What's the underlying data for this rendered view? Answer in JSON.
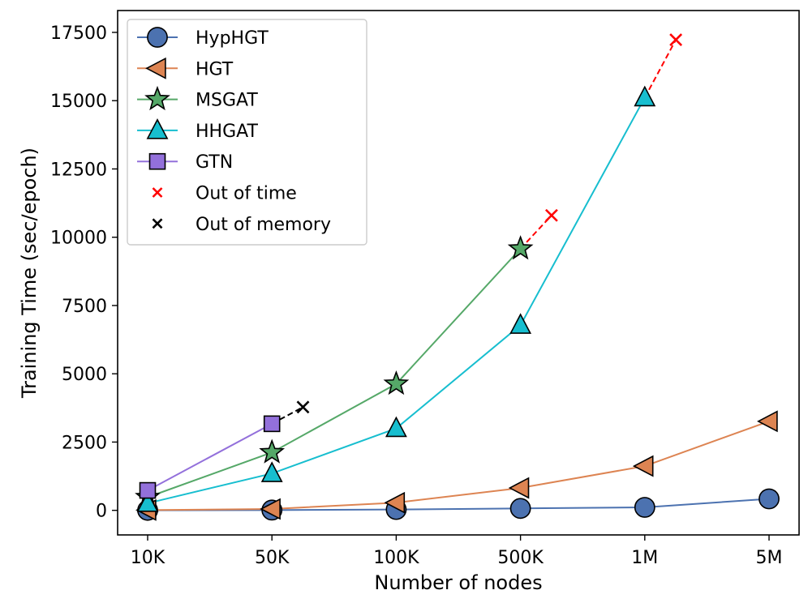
{
  "chart_data": {
    "type": "line",
    "title": "",
    "xlabel": "Number of nodes",
    "ylabel": "Training Time (sec/epoch)",
    "categories": [
      "10K",
      "50K",
      "100K",
      "500K",
      "1M",
      "5M"
    ],
    "yticks": [
      0,
      2500,
      5000,
      7500,
      10000,
      12500,
      15000,
      17500
    ],
    "ylim": [
      -900,
      18300
    ],
    "legend_position": "upper-left",
    "series": [
      {
        "name": "HypHGT",
        "color": "#4c72b0",
        "marker": "circle",
        "values": [
          0,
          10,
          30,
          70,
          110,
          420
        ]
      },
      {
        "name": "HGT",
        "color": "#dd8452",
        "marker": "triangle-left",
        "values": [
          10,
          50,
          280,
          820,
          1620,
          3260
        ]
      },
      {
        "name": "MSGAT",
        "color": "#55a868",
        "marker": "star",
        "values": [
          480,
          2120,
          4630,
          9580,
          null,
          null
        ],
        "failure": {
          "from": 3,
          "at": 3.25,
          "value": 10800,
          "kind": "Out of time"
        }
      },
      {
        "name": "HHGAT",
        "color": "#17becf",
        "marker": "triangle-up",
        "values": [
          260,
          1350,
          3000,
          6780,
          15110,
          null
        ],
        "failure": {
          "from": 4,
          "at": 4.25,
          "value": 17230,
          "kind": "Out of time"
        }
      },
      {
        "name": "GTN",
        "color": "#9370db",
        "marker": "square",
        "values": [
          730,
          3170,
          null,
          null,
          null,
          null
        ],
        "failure": {
          "from": 1,
          "at": 1.25,
          "value": 3780,
          "kind": "Out of memory"
        }
      }
    ],
    "failure_markers": [
      {
        "name": "Out of time",
        "color": "#ff0000"
      },
      {
        "name": "Out of memory",
        "color": "#000000"
      }
    ]
  }
}
